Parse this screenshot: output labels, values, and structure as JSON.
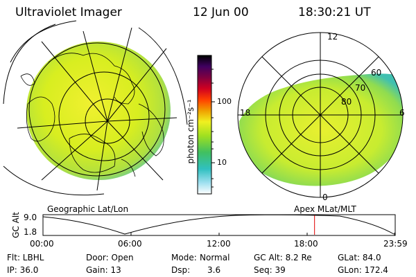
{
  "header": {
    "instrument": "Ultraviolet Imager",
    "date": "12 Jun 00",
    "time": "18:30:21 UT"
  },
  "colorbar": {
    "unit_label": "photon cm⁻²s⁻¹",
    "ticks": [
      "100",
      "10"
    ],
    "tick_values": [
      100,
      10
    ],
    "scale": "log",
    "colors": [
      "#ffffff",
      "#a0e0f0",
      "#30c0c0",
      "#40c060",
      "#a0e020",
      "#f0f020",
      "#f0a000",
      "#ff4000",
      "#d00020",
      "#800040",
      "#400060",
      "#000000"
    ]
  },
  "geo_panel": {
    "caption": "Geographic Lat/Lon",
    "dominant_color": "#d8ee20"
  },
  "mag_panel": {
    "caption": "Apex MLat/MLT",
    "mlt_labels": [
      "12",
      "18",
      "6",
      "0"
    ],
    "lat_labels": [
      "60",
      "70",
      "80"
    ]
  },
  "timeline": {
    "axis_label": "GC Alt",
    "y_ticks": [
      "9.0",
      "1.8"
    ],
    "y_max": 9.0,
    "y_min": 1.8,
    "x_ticks": [
      "00:00",
      "06:00",
      "12:00",
      "18:00",
      "23:59"
    ],
    "marker_time": "18:30",
    "marker_fraction": 0.771,
    "marker_color": "#e00000"
  },
  "footer": {
    "filter": "Flt: LBHL",
    "ip": "IP: 36.0",
    "door": "Door: Open",
    "gain": "Gain: 13",
    "mode_label": "Mode:",
    "mode_value": "Normal",
    "dsp_label": "Dsp:",
    "dsp_value": "3.6",
    "gc_alt": "GC Alt: 8.2 Re",
    "seq": "Seq: 39",
    "glat": "GLat: 84.0",
    "glon": "GLon: 172.4"
  }
}
